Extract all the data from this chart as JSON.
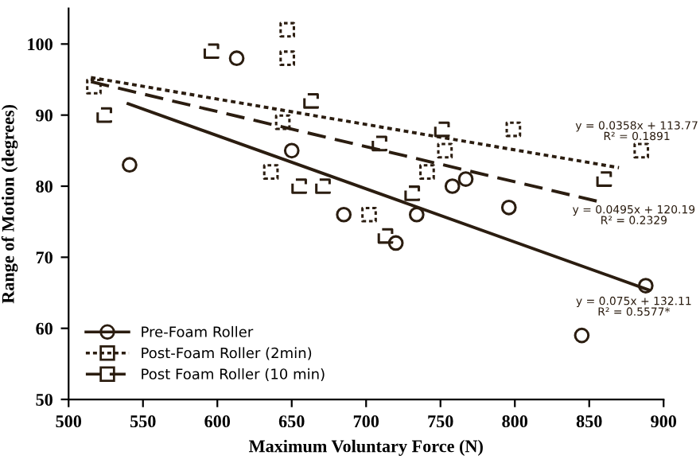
{
  "chart_data": {
    "type": "scatter",
    "xlabel": "Maximum Voluntary Force (N)",
    "ylabel": "Range of Motion (degrees)",
    "xlim": [
      500,
      900
    ],
    "ylim": [
      50,
      105
    ],
    "xticks": [
      500,
      550,
      600,
      650,
      700,
      750,
      800,
      850,
      900
    ],
    "yticks": [
      50,
      60,
      70,
      80,
      90,
      100
    ],
    "grid": false,
    "legend": "bottom left",
    "series": [
      {
        "name": "Pre-Foam Roller",
        "color": "#2b1d10",
        "marker": "circle",
        "line_style": "solid",
        "x": [
          541,
          613,
          650,
          685,
          720,
          734,
          758,
          767,
          796,
          845,
          888
        ],
        "values": [
          83,
          98,
          85,
          76,
          72,
          76,
          80,
          81,
          77,
          59,
          66
        ]
      },
      {
        "name": "Post-Foam Roller (2min)",
        "color": "#2b1d10",
        "marker": "square",
        "line_style": "dotted",
        "x": [
          517,
          636,
          644,
          647,
          647,
          702,
          741,
          753,
          799,
          885
        ],
        "values": [
          94,
          82,
          89,
          102,
          98,
          76,
          82,
          85,
          88,
          85
        ]
      },
      {
        "name": "Post Foam Roller (10 min)",
        "color": "#2b1d10",
        "marker": "square",
        "line_style": "dashed",
        "x": [
          524,
          596,
          655,
          663,
          671,
          709,
          713,
          731,
          751,
          860
        ],
        "values": [
          90,
          99,
          80,
          92,
          80,
          86,
          73,
          79,
          88,
          81
        ]
      },
      {
        "type": "line",
        "color": "#2b1d10",
        "line_style": "solid",
        "x": [
          540,
          890
        ],
        "values": [
          91.6,
          65.4
        ]
      },
      {
        "type": "line",
        "color": "#2b1d10",
        "line_style": "dotted",
        "x": [
          515,
          870
        ],
        "values": [
          95.3,
          82.6
        ]
      },
      {
        "type": "line",
        "color": "#2b1d10",
        "line_style": "dashed",
        "x": [
          515,
          855
        ],
        "values": [
          94.7,
          77.9
        ]
      }
    ],
    "annotations": [
      "y = 0.0358x + 113.77\nR² = 0.1891",
      "y = 0.0495x + 120.19\nR² = 0.2329",
      "y = 0.075x + 132.11\nR² = 0.5577*"
    ]
  }
}
